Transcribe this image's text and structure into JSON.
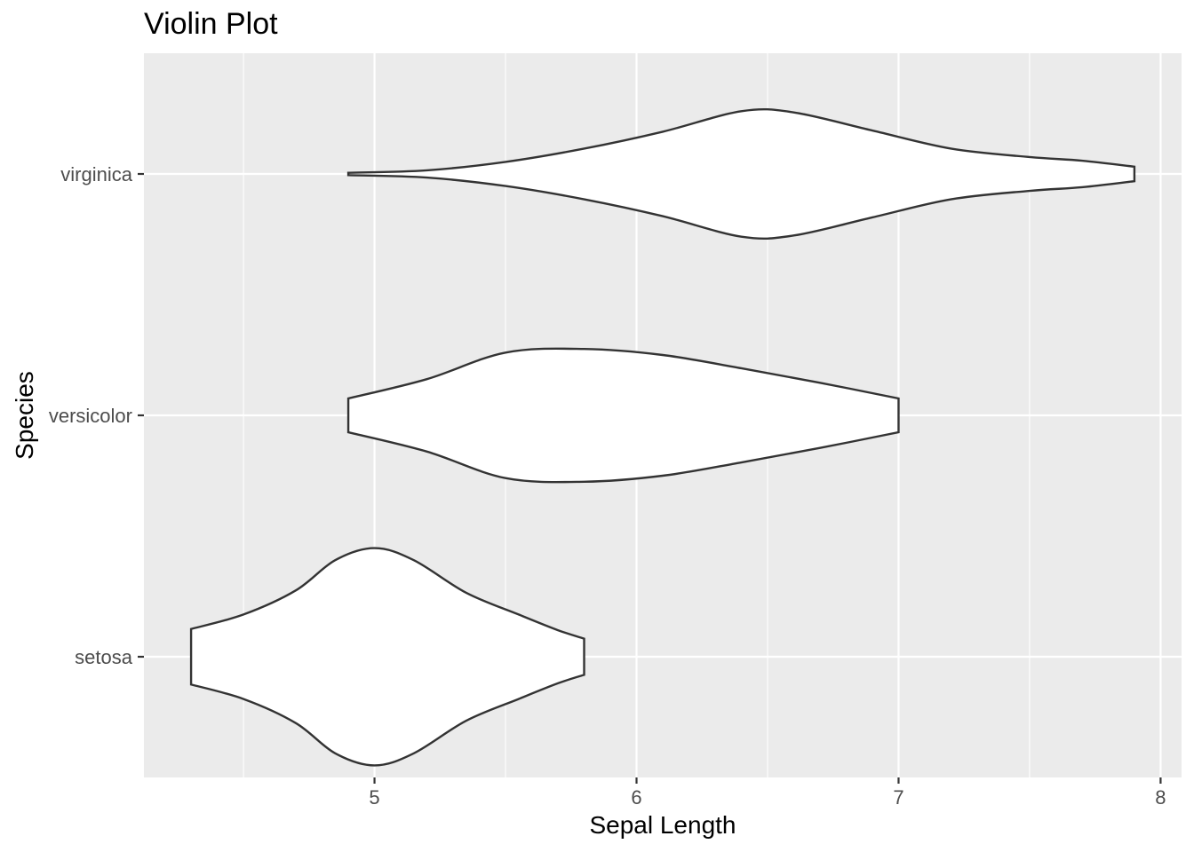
{
  "chart_data": {
    "type": "violin",
    "title": "Violin Plot",
    "xlabel": "Sepal Length",
    "ylabel": "Species",
    "xlim": [
      4.12,
      8.08
    ],
    "x_ticks": [
      5,
      6,
      7,
      8
    ],
    "x_minor_ticks": [
      4.5,
      5.5,
      6.5,
      7.5
    ],
    "categories": [
      "setosa",
      "versicolor",
      "virginica"
    ],
    "grid": true,
    "colors": {
      "panel_background": "#ebebeb",
      "grid_major": "#ffffff",
      "violin_fill": "#ffffff",
      "violin_outline": "#333333"
    },
    "series": [
      {
        "category": "setosa",
        "min": 4.3,
        "max": 5.8,
        "profile": [
          [
            4.3,
            0.23
          ],
          [
            4.5,
            0.35
          ],
          [
            4.7,
            0.55
          ],
          [
            4.85,
            0.8
          ],
          [
            5.0,
            0.9
          ],
          [
            5.15,
            0.8
          ],
          [
            5.35,
            0.53
          ],
          [
            5.55,
            0.35
          ],
          [
            5.7,
            0.22
          ],
          [
            5.8,
            0.15
          ]
        ]
      },
      {
        "category": "versicolor",
        "min": 4.9,
        "max": 7.0,
        "profile": [
          [
            4.9,
            0.14
          ],
          [
            5.2,
            0.3
          ],
          [
            5.5,
            0.52
          ],
          [
            5.8,
            0.55
          ],
          [
            6.1,
            0.5
          ],
          [
            6.4,
            0.39
          ],
          [
            6.7,
            0.27
          ],
          [
            7.0,
            0.14
          ]
        ]
      },
      {
        "category": "virginica",
        "min": 4.9,
        "max": 7.9,
        "profile": [
          [
            4.9,
            0.01
          ],
          [
            5.2,
            0.03
          ],
          [
            5.5,
            0.1
          ],
          [
            5.8,
            0.21
          ],
          [
            6.1,
            0.35
          ],
          [
            6.4,
            0.52
          ],
          [
            6.6,
            0.51
          ],
          [
            6.9,
            0.36
          ],
          [
            7.2,
            0.21
          ],
          [
            7.5,
            0.14
          ],
          [
            7.7,
            0.11
          ],
          [
            7.9,
            0.06
          ]
        ]
      }
    ]
  }
}
